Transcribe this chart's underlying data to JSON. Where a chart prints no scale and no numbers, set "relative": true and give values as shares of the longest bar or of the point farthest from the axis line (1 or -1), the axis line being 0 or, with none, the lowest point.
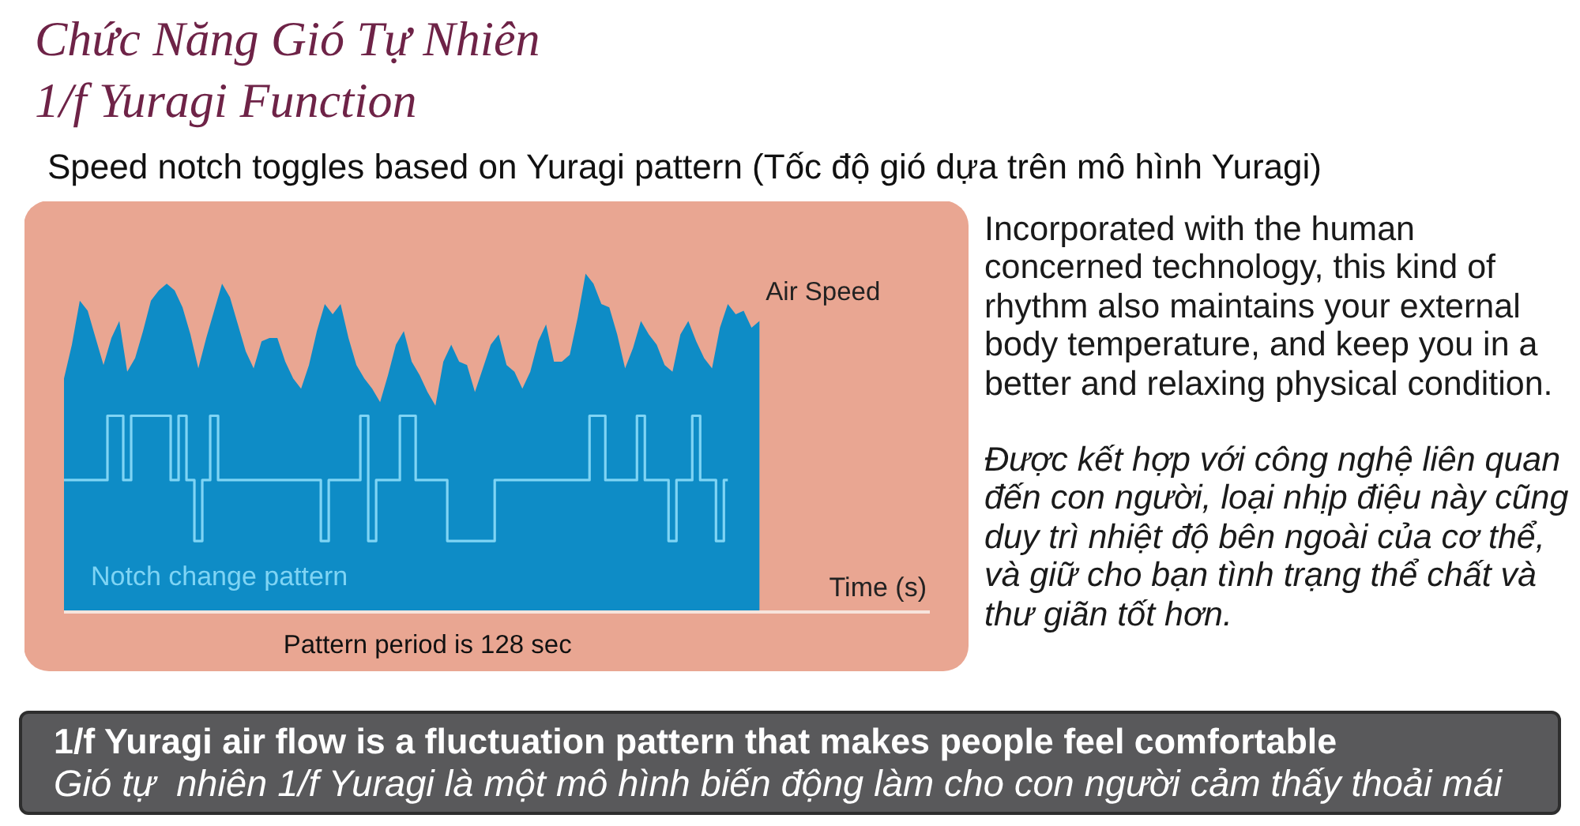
{
  "chart_data": {
    "type": "area",
    "relative": true,
    "title": "Chức Năng Gió Tự Nhiên\n1/f Yuragi Function",
    "subtitle": "Speed notch toggles based on Yuragi pattern (Tốc độ gió dựa trên mô hình Yuragi)",
    "xlabel": "Time (s)",
    "categories": [
      null,
      null,
      null,
      null,
      null,
      null,
      null,
      null,
      null,
      null,
      null,
      null,
      null,
      null,
      null,
      null,
      null,
      null,
      null,
      null,
      null,
      null,
      null,
      null,
      null,
      null,
      null,
      null,
      null,
      null,
      null,
      null,
      null,
      null,
      null,
      null,
      null,
      null,
      null,
      null,
      null,
      null,
      null,
      null,
      null,
      null,
      null,
      null,
      null,
      null,
      null,
      null,
      null,
      null,
      null,
      null,
      null,
      null,
      null,
      null,
      null,
      null,
      null,
      null,
      null,
      null,
      null,
      null,
      null,
      null,
      null,
      null,
      null,
      null,
      null,
      null,
      null,
      null,
      null,
      null,
      null,
      null,
      null,
      null,
      null,
      null,
      null,
      null,
      null
    ],
    "series": [
      {
        "name": "Air Speed",
        "color": "#0e8cc6",
        "values": [
          0.69,
          0.79,
          0.92,
          0.89,
          0.81,
          0.73,
          0.81,
          0.86,
          0.71,
          0.75,
          0.83,
          0.92,
          0.95,
          0.97,
          0.95,
          0.9,
          0.82,
          0.72,
          0.81,
          0.89,
          0.97,
          0.93,
          0.85,
          0.77,
          0.72,
          0.8,
          0.81,
          0.81,
          0.74,
          0.69,
          0.66,
          0.73,
          0.83,
          0.91,
          0.88,
          0.91,
          0.81,
          0.73,
          0.69,
          0.66,
          0.62,
          0.7,
          0.79,
          0.83,
          0.74,
          0.7,
          0.65,
          0.61,
          0.74,
          0.79,
          0.74,
          0.73,
          0.65,
          0.72,
          0.79,
          0.82,
          0.73,
          0.71,
          0.66,
          0.71,
          0.8,
          0.85,
          0.74,
          0.74,
          0.76,
          0.87,
          1.0,
          0.97,
          0.91,
          0.9,
          0.82,
          0.72,
          0.78,
          0.86,
          0.82,
          0.79,
          0.73,
          0.71,
          0.82,
          0.86,
          0.8,
          0.75,
          0.72,
          0.84,
          0.91,
          0.88,
          0.89,
          0.84,
          0.86
        ]
      },
      {
        "name": "Notch change pattern",
        "type": "step",
        "color": "#7fd4f4",
        "values": [
          0.39,
          0.39,
          0.39,
          0.39,
          0.39,
          0.39,
          0.58,
          0.58,
          0.39,
          0.58,
          0.58,
          0.58,
          0.58,
          0.58,
          0.39,
          0.58,
          0.39,
          0.21,
          0.39,
          0.58,
          0.39,
          0.39,
          0.39,
          0.39,
          0.39,
          0.39,
          0.39,
          0.39,
          0.39,
          0.39,
          0.39,
          0.39,
          0.39,
          0.21,
          0.39,
          0.39,
          0.39,
          0.39,
          0.58,
          0.21,
          0.39,
          0.39,
          0.39,
          0.58,
          0.58,
          0.39,
          0.39,
          0.39,
          0.39,
          0.21,
          0.21,
          0.21,
          0.21,
          0.21,
          0.21,
          0.39,
          0.39,
          0.39,
          0.39,
          0.39,
          0.39,
          0.39,
          0.39,
          0.39,
          0.39,
          0.39,
          0.39,
          0.58,
          0.58,
          0.39,
          0.39,
          0.39,
          0.39,
          0.58,
          0.39,
          0.39,
          0.39,
          0.21,
          0.39,
          0.39,
          0.58,
          0.39,
          0.39,
          0.21,
          0.39,
          null,
          null,
          null,
          null
        ]
      }
    ],
    "annotations": [
      "Pattern period is 128 sec",
      "Incorporated with the human\nconcerned technology, this kind of\nrhythm also maintains your external\nbody temperature, and keep you in a\nbetter and relaxing physical condition.",
      "Được kết hợp với công nghệ liên quan\nđến con người, loại nhịp điệu này cũng\nduy trì nhiệt độ bên ngoài của cơ thể,\nvà giữ cho bạn tình trạng thể chất và\nthư giãn tốt hơn.",
      "1/f Yuragi air flow is a fluctuation pattern that makes people feel comfortable",
      "Gió tự  nhiên 1/f Yuragi là một mô hình biến động làm cho con người cảm thấy thoải mái"
    ]
  }
}
